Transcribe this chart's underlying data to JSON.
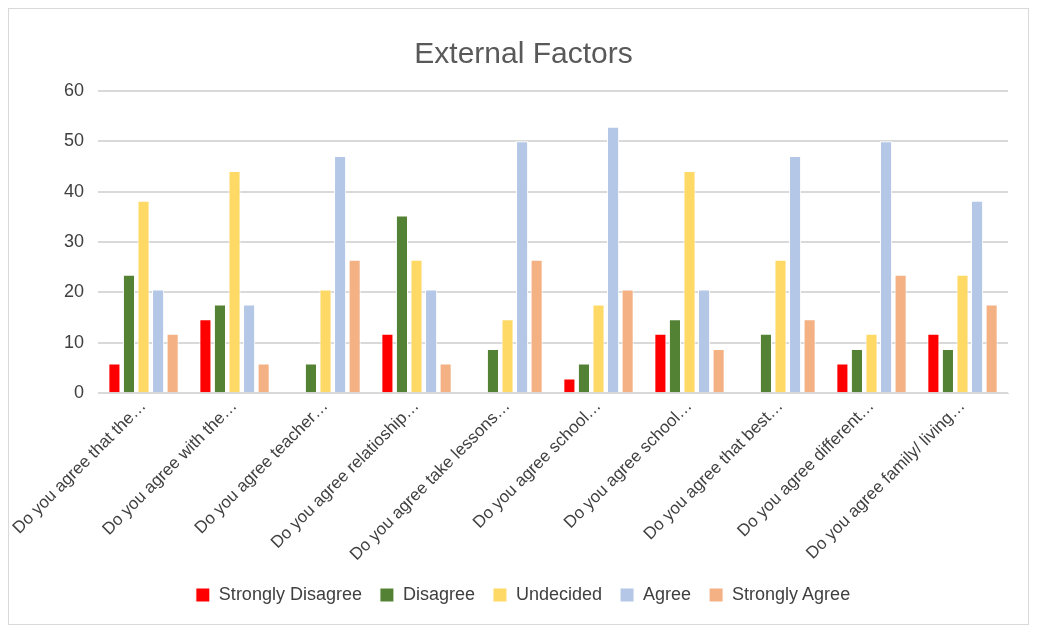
{
  "chart_data": {
    "type": "bar",
    "title": "External Factors",
    "categories": [
      "Do you agree that the…",
      "Do you agree with the…",
      "Do you agree teacher…",
      "Do you agree relatioship…",
      "Do you agree take lessons…",
      "Do you agree school…",
      "Do you agree school…",
      "Do you agree that best…",
      "Do you agree different…",
      "Do you agree family/ living…"
    ],
    "series": [
      {
        "name": "Strongly Disagree",
        "color": "#ff0000",
        "values": [
          5.9,
          14.7,
          0,
          11.8,
          0,
          2.9,
          11.8,
          0,
          5.9,
          11.8
        ]
      },
      {
        "name": "Disagree",
        "color": "#548235",
        "values": [
          23.5,
          17.6,
          5.9,
          35.3,
          8.8,
          5.9,
          14.7,
          11.8,
          8.8,
          8.8
        ]
      },
      {
        "name": "Undecided",
        "color": "#ffd966",
        "values": [
          38.2,
          44.1,
          20.6,
          26.5,
          14.7,
          17.6,
          44.1,
          26.5,
          11.8,
          23.5
        ]
      },
      {
        "name": "Agree",
        "color": "#b4c7e7",
        "values": [
          20.6,
          17.6,
          47.1,
          20.6,
          50,
          52.9,
          20.6,
          47.1,
          50,
          38.2
        ]
      },
      {
        "name": "Strongly Agree",
        "color": "#f4b183",
        "values": [
          11.8,
          5.9,
          26.5,
          5.9,
          26.5,
          20.6,
          8.8,
          14.7,
          23.5,
          17.6
        ]
      }
    ],
    "ylim": [
      0,
      60
    ],
    "yticks": [
      0,
      10,
      20,
      30,
      40,
      50,
      60
    ],
    "grid": "y",
    "legend": "bottom"
  }
}
